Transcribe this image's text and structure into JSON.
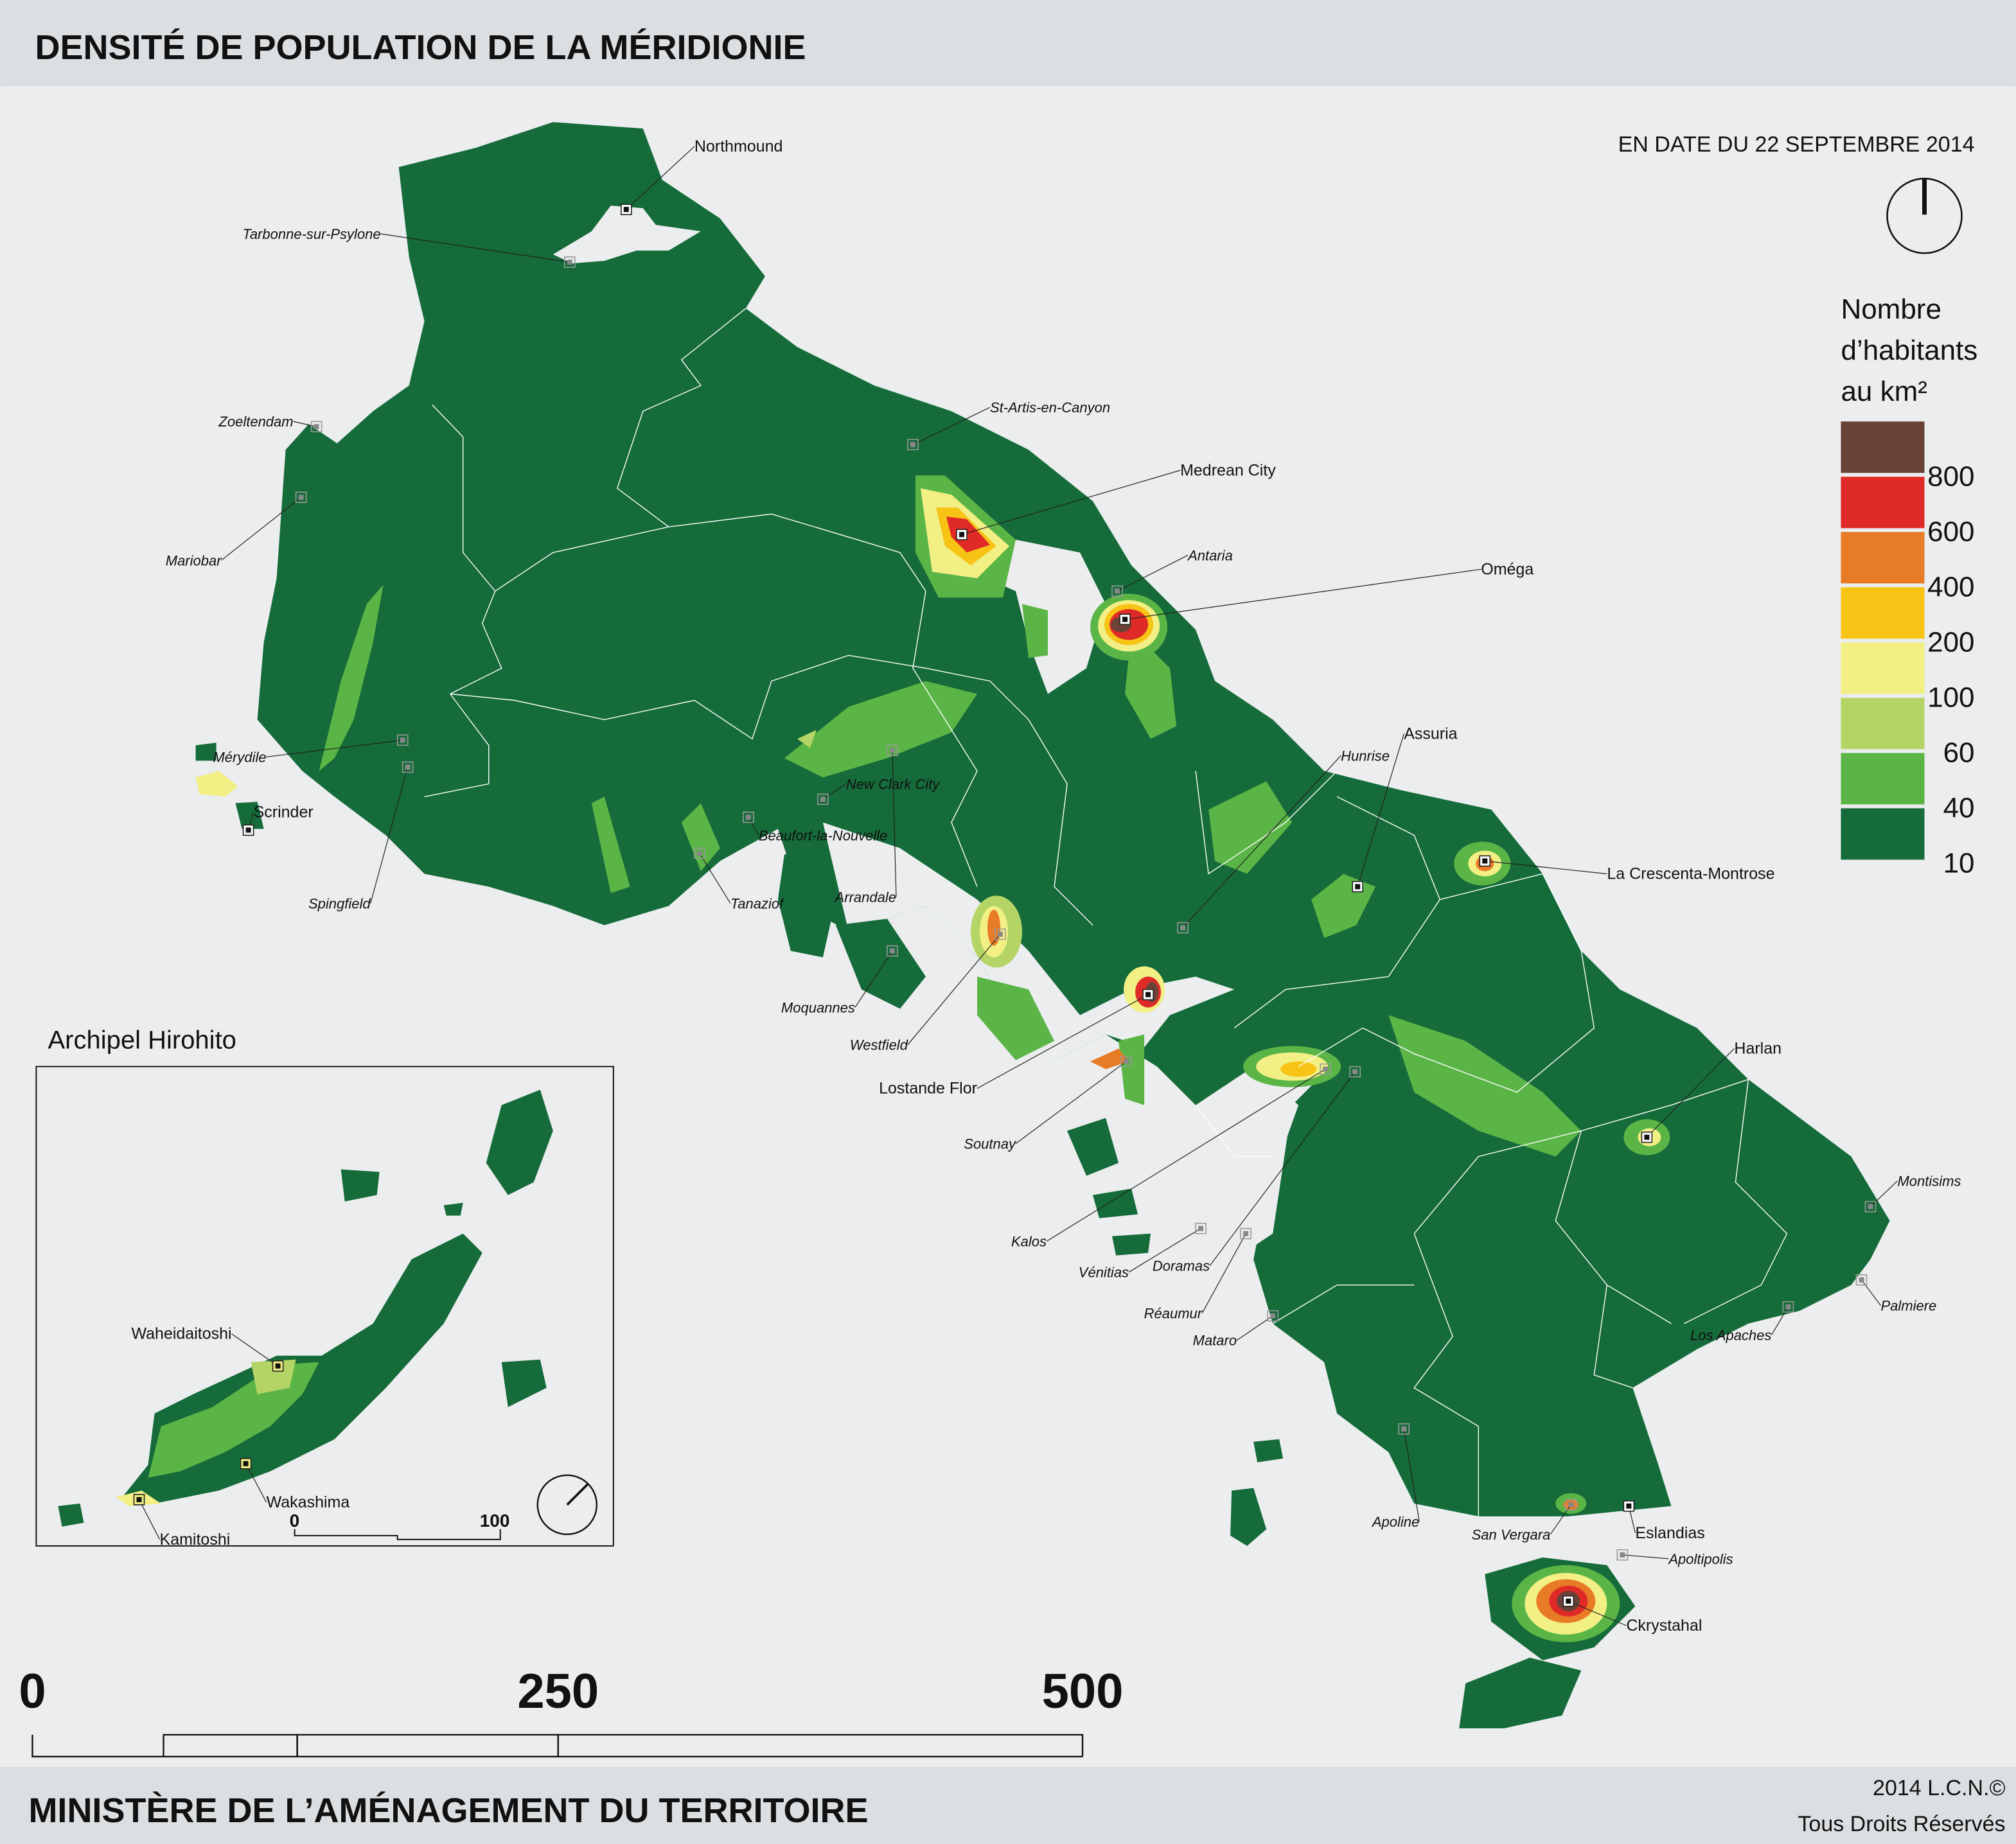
{
  "header": {
    "title": "DENSITÉ DE POPULATION DE LA MÉRIDIONIE"
  },
  "date": "EN DATE DU 22 SEPTEMBRE 2014",
  "north_arrow_icon": "north-arrow-icon",
  "legend": {
    "title_lines": [
      "Nombre",
      "d’habitants",
      "au km²"
    ],
    "classes": [
      {
        "color": "#6a4238",
        "label": "800"
      },
      {
        "color": "#e02a28",
        "label": "600"
      },
      {
        "color": "#e87b25",
        "label": "400"
      },
      {
        "color": "#f7c416",
        "label": "200"
      },
      {
        "color": "#f2ef85",
        "label": "100"
      },
      {
        "color": "#b4d566",
        "label": "60"
      },
      {
        "color": "#5bb546",
        "label": "40"
      },
      {
        "color": "#156b39",
        "label": "10"
      }
    ]
  },
  "colors": {
    "land": "#156b39",
    "sea": "#ebedef",
    "band": "#dcdfe1",
    "border": "#ffffff"
  },
  "cities": [
    {
      "name": "Northmound",
      "style": "major"
    },
    {
      "name": "Tarbonne-sur-Psylone",
      "style": "minor"
    },
    {
      "name": "Zoeltendam",
      "style": "minor"
    },
    {
      "name": "Mariobar",
      "style": "minor"
    },
    {
      "name": "Mérydile",
      "style": "minor"
    },
    {
      "name": "Scrinder",
      "style": "major"
    },
    {
      "name": "Spingfield",
      "style": "minor"
    },
    {
      "name": "St-Artis-en-Canyon",
      "style": "minor"
    },
    {
      "name": "Medrean City",
      "style": "major"
    },
    {
      "name": "Antaria",
      "style": "minor"
    },
    {
      "name": "Oméga",
      "style": "major"
    },
    {
      "name": "New Clark City",
      "style": "minor"
    },
    {
      "name": "Beaufort-la-Nouvelle",
      "style": "minor"
    },
    {
      "name": "Tanaziof",
      "style": "minor"
    },
    {
      "name": "Arrandale",
      "style": "minor"
    },
    {
      "name": "Moquannes",
      "style": "minor"
    },
    {
      "name": "Westfield",
      "style": "minor"
    },
    {
      "name": "Lostande Flor",
      "style": "major"
    },
    {
      "name": "Hunrise",
      "style": "minor"
    },
    {
      "name": "Assuria",
      "style": "major"
    },
    {
      "name": "La Crescenta-Montrose",
      "style": "major"
    },
    {
      "name": "Soutnay",
      "style": "minor"
    },
    {
      "name": "Kalos",
      "style": "minor"
    },
    {
      "name": "Vénitias",
      "style": "minor"
    },
    {
      "name": "Doramas",
      "style": "minor"
    },
    {
      "name": "Réaumur",
      "style": "minor"
    },
    {
      "name": "Mataro",
      "style": "minor"
    },
    {
      "name": "Harlan",
      "style": "major"
    },
    {
      "name": "Montisims",
      "style": "minor"
    },
    {
      "name": "Palmiere",
      "style": "minor"
    },
    {
      "name": "Los Apaches",
      "style": "minor"
    },
    {
      "name": "Apoline",
      "style": "minor"
    },
    {
      "name": "San Vergara",
      "style": "minor"
    },
    {
      "name": "Eslandias",
      "style": "major"
    },
    {
      "name": "Apoltipolis",
      "style": "minor"
    },
    {
      "name": "Ckrystahal",
      "style": "major"
    }
  ],
  "inset": {
    "title": "Archipel Hirohito",
    "cities": [
      {
        "name": "Waheidaitoshi"
      },
      {
        "name": "Wakashima"
      },
      {
        "name": "Kamitoshi"
      }
    ],
    "scale_labels": [
      "0",
      "100"
    ]
  },
  "scale_labels": [
    "0",
    "250",
    "500"
  ],
  "footer": {
    "ministry": "MINISTÈRE DE L’AMÉNAGEMENT DU TERRITOIRE",
    "copyright": "2014 L.C.N.©",
    "rights": "Tous Droits Réservés"
  }
}
